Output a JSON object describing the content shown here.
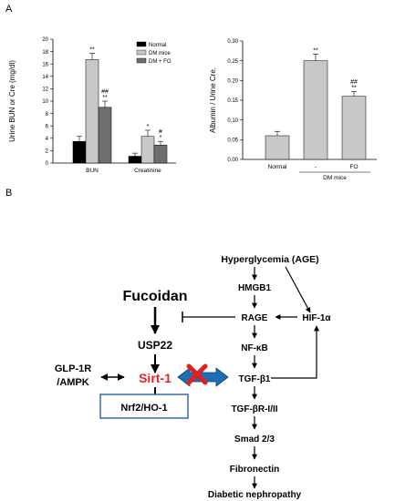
{
  "panel_labels": {
    "a": "A",
    "b": "B"
  },
  "chart_data": [
    {
      "type": "bar",
      "ylabel": "Urine BUN or Cre (mg/dl)",
      "ylim": [
        0,
        20
      ],
      "yticks": [
        "0",
        "2",
        "4",
        "6",
        "8",
        "10",
        "12",
        "14",
        "16",
        "18",
        "20"
      ],
      "grid": false,
      "legend_position": "top-right",
      "categories": [
        "BUN",
        "Creatinine"
      ],
      "series": [
        {
          "name": "Normal",
          "color": "#000000",
          "values": [
            3.5,
            1.1
          ],
          "errors": [
            0.8,
            0.5
          ]
        },
        {
          "name": "DM mice",
          "color": "#c8c8c8",
          "values": [
            16.7,
            4.3
          ],
          "errors": [
            1.0,
            1.0
          ]
        },
        {
          "name": "DM + FO",
          "color": "#6e6e6e",
          "values": [
            9.0,
            2.9
          ],
          "errors": [
            1.0,
            0.6
          ]
        }
      ],
      "annotations": [
        {
          "category": "BUN",
          "series": "DM mice",
          "text": [
            "**"
          ]
        },
        {
          "category": "BUN",
          "series": "DM + FO",
          "text": [
            "##",
            "**"
          ]
        },
        {
          "category": "Creatinine",
          "series": "DM mice",
          "text": [
            "*"
          ]
        },
        {
          "category": "Creatinine",
          "series": "DM + FO",
          "text": [
            "#",
            "*"
          ]
        }
      ]
    },
    {
      "type": "bar",
      "ylabel": "Albumin / Urine Cre.",
      "ylim": [
        0,
        0.3
      ],
      "yticks": [
        "0.00",
        "0.05",
        "0.10",
        "0.15",
        "0.20",
        "0.25",
        "0.30"
      ],
      "grid": false,
      "categories": [
        "Normal",
        "-",
        "FO"
      ],
      "bar_color": "#c8c8c8",
      "values": [
        0.06,
        0.25,
        0.16
      ],
      "errors": [
        0.011,
        0.017,
        0.012
      ],
      "group_label": "DM mice",
      "annotations": [
        {
          "category": "-",
          "text": [
            "**"
          ]
        },
        {
          "category": "FO",
          "text": [
            "##",
            "**"
          ]
        }
      ]
    }
  ],
  "diagram": {
    "fucoidan": "Fucoidan",
    "usp22": "USP22",
    "sirt1": "Sirt-1",
    "glp1r_line1": "GLP-1R",
    "glp1r_line2": "/AMPK",
    "nrf2": "Nrf2/HO-1",
    "hyperglycemia": "Hyperglycemia (AGE)",
    "hmgb1": "HMGB1",
    "rage": "RAGE",
    "hif1a": "HIF-1α",
    "nfkb": "NF-κB",
    "tgfb1": "TGF-β1",
    "tgfbr": "TGF-βR-I/II",
    "smad": "Smad 2/3",
    "fibronectin": "Fibronectin",
    "nephropathy": "Diabetic nephropathy",
    "colors": {
      "sirt1": "#e8202a",
      "blue_arrow": "#1f6fb4",
      "red_x": "#e02020",
      "box_border": "#3a6aa8"
    }
  }
}
